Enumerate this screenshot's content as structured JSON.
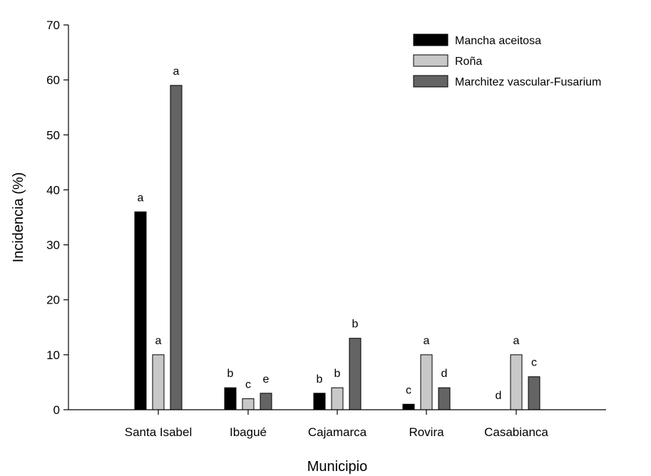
{
  "chart_data": {
    "type": "bar",
    "title": "",
    "xlabel": "Municipio",
    "ylabel": "Incidencia (%)",
    "ylim": [
      0,
      70
    ],
    "yticks": [
      0,
      10,
      20,
      30,
      40,
      50,
      60,
      70
    ],
    "grid": false,
    "legend_position": "top-right",
    "categories": [
      "Santa Isabel",
      "Ibagué",
      "Cajamarca",
      "Rovira",
      "Casabianca"
    ],
    "series": [
      {
        "name": "Mancha aceitosa",
        "color": "#000000",
        "values": [
          36,
          4,
          3,
          1,
          0
        ],
        "labels": [
          "a",
          "b",
          "b",
          "c",
          "d"
        ]
      },
      {
        "name": "Roña",
        "color": "#c8c8c8",
        "values": [
          10,
          2,
          4,
          10,
          10
        ],
        "labels": [
          "a",
          "c",
          "b",
          "a",
          "a"
        ]
      },
      {
        "name": "Marchitez vascular-Fusarium",
        "color": "#646464",
        "values": [
          59,
          3,
          13,
          4,
          6
        ],
        "labels": [
          "a",
          "e",
          "b",
          "d",
          "c"
        ]
      }
    ]
  }
}
